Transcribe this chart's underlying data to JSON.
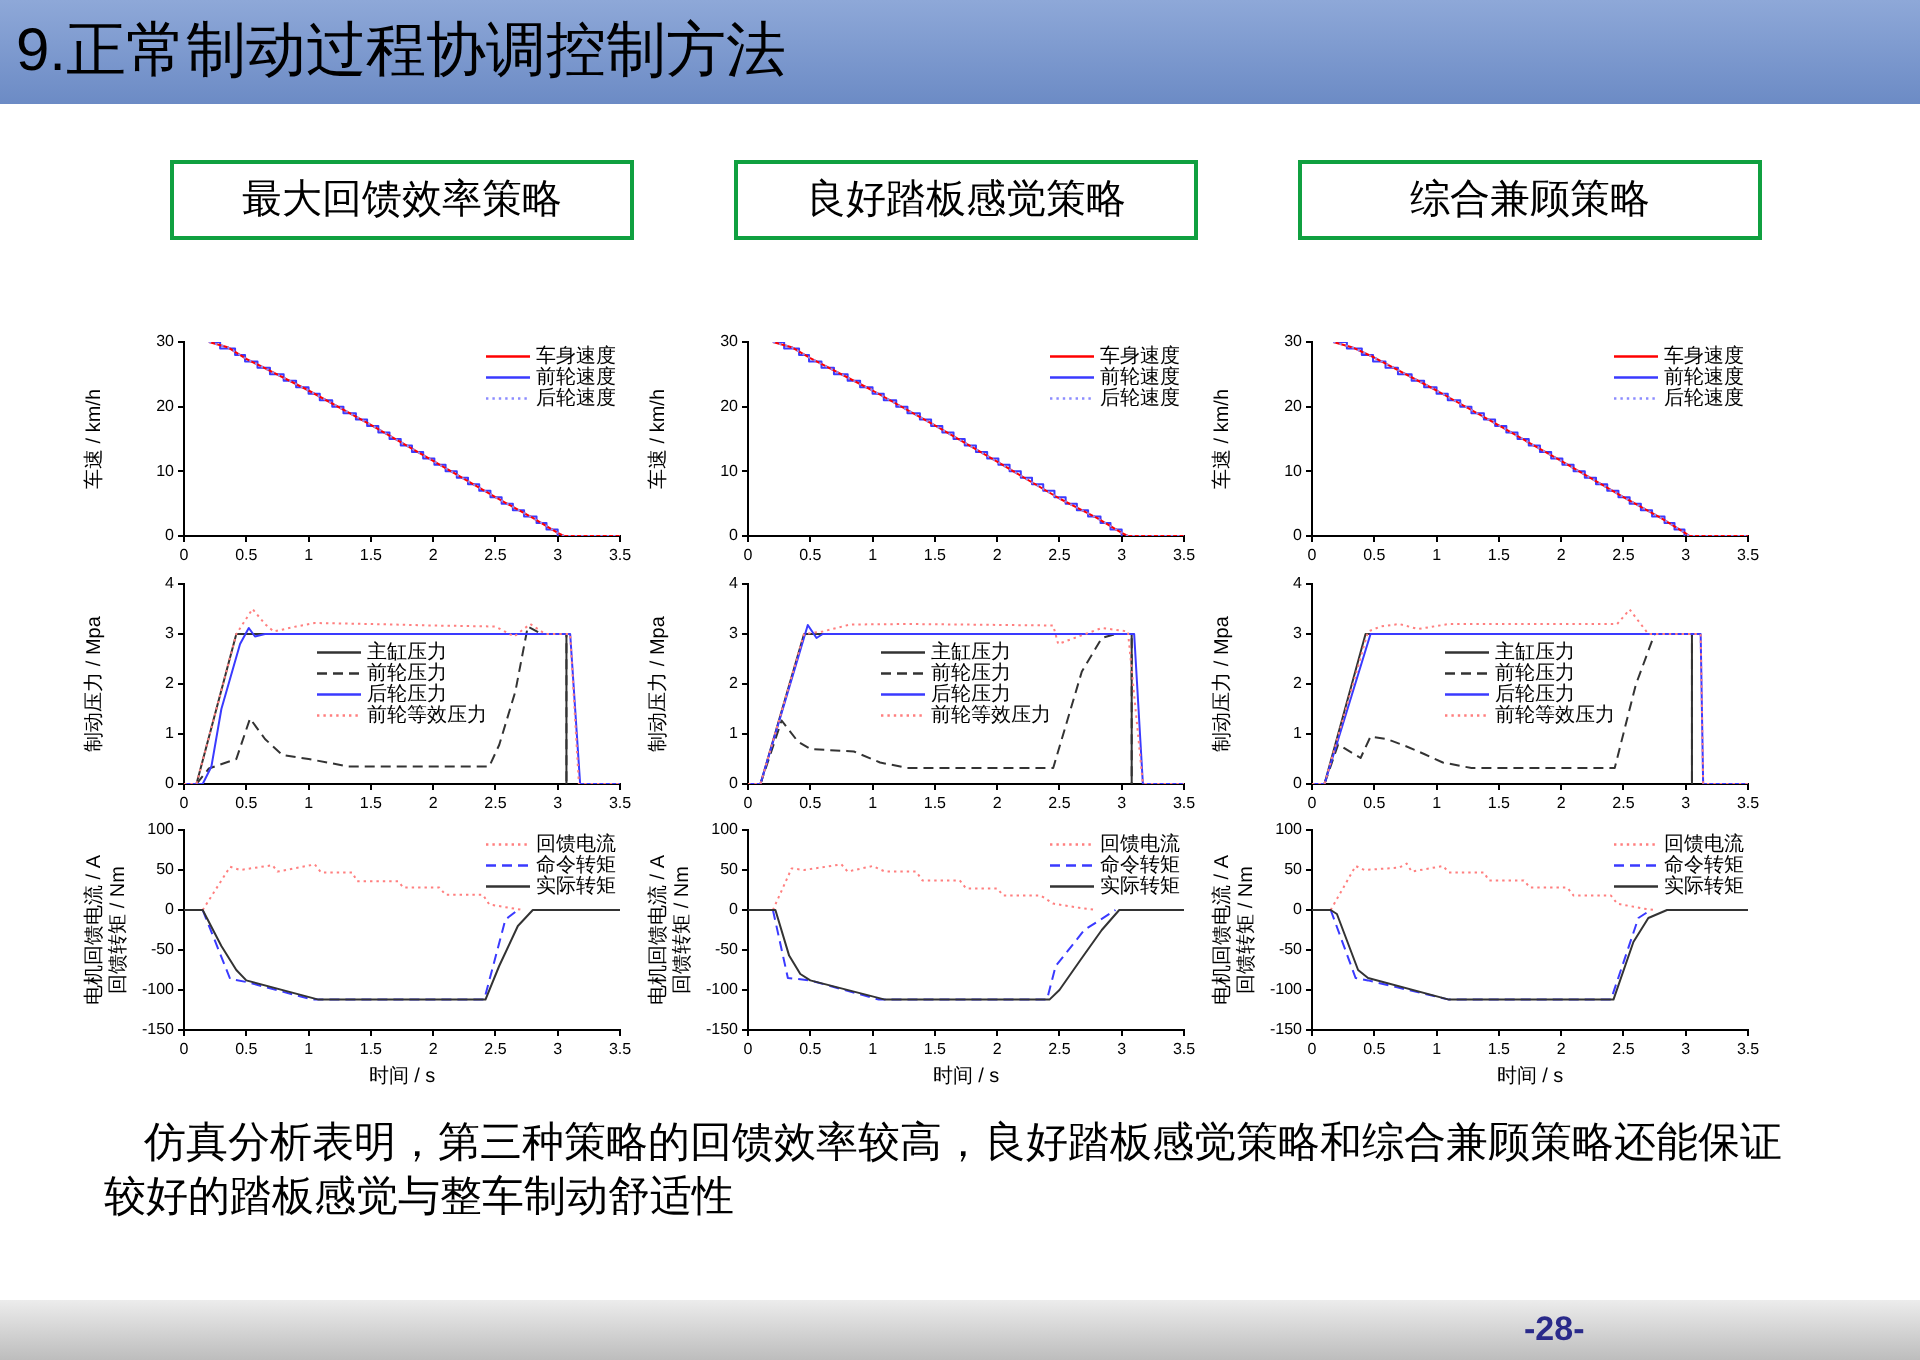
{
  "chart_data": [
    {
      "type": "other",
      "title": "9.正常制动过程协调控制方法"
    },
    {
      "type": "line",
      "title": "最大回馈效率策略",
      "ylabel": "车速 / km/h",
      "xlim": [
        0,
        3.5
      ],
      "xticks": [
        0,
        0.5,
        1,
        1.5,
        2,
        2.5,
        3,
        3.5
      ],
      "ylim": [
        0,
        30
      ],
      "yticks": [
        0,
        10,
        20,
        30
      ],
      "legend": "top right",
      "series": [
        {
          "name": "车身速度",
          "color": "#ff0000",
          "line_style": "solid",
          "x": [
            0.2,
            0.35,
            0.5,
            1,
            1.5,
            2,
            2.5,
            2.8,
            3,
            3.05,
            3.5
          ],
          "values": [
            30,
            29.2,
            27.4,
            22.5,
            17.2,
            11.6,
            6,
            2.8,
            0.5,
            0,
            0
          ]
        },
        {
          "name": "前轮速度",
          "type": "step",
          "color": "#3a3aff",
          "line_style": "solid",
          "x": [
            0.2,
            0.29,
            0.41,
            0.49,
            0.59,
            0.69,
            0.8,
            0.9,
            1,
            1.09,
            1.19,
            1.28,
            1.38,
            1.47,
            1.56,
            1.65,
            1.74,
            1.83,
            1.92,
            2.01,
            2.1,
            2.19,
            2.28,
            2.37,
            2.46,
            2.55,
            2.64,
            2.73,
            2.83,
            2.91,
            3
          ],
          "values": [
            30,
            29,
            28,
            27,
            26,
            25,
            24,
            23,
            22,
            21,
            20,
            19,
            18,
            17,
            16,
            15,
            14,
            13,
            12,
            11,
            10,
            9,
            8,
            7,
            6,
            5,
            4,
            3,
            2,
            1,
            0
          ]
        },
        {
          "name": "后轮速度",
          "color": "#8c8cff",
          "line_style": "dotted",
          "x": [
            0.2,
            0.35,
            0.5,
            1,
            1.5,
            2,
            2.5,
            2.8,
            3,
            3.05,
            3.5
          ],
          "values": [
            30,
            29.2,
            27.4,
            22.5,
            17.2,
            11.6,
            6,
            2.8,
            0.5,
            0,
            0
          ]
        }
      ]
    },
    {
      "type": "line",
      "title": "良好踏板感觉策略",
      "ylabel": "车速 / km/h",
      "xlim": [
        0,
        3.5
      ],
      "xticks": [
        0,
        0.5,
        1,
        1.5,
        2,
        2.5,
        3,
        3.5
      ],
      "ylim": [
        0,
        30
      ],
      "yticks": [
        0,
        10,
        20,
        30
      ],
      "legend": "top right",
      "series": [
        {
          "name": "车身速度",
          "color": "#ff0000",
          "line_style": "solid",
          "x": [
            0.2,
            0.35,
            0.5,
            1,
            1.5,
            2,
            2.5,
            2.8,
            3,
            3.05,
            3.5
          ],
          "values": [
            30,
            29.2,
            27.5,
            22.5,
            17.1,
            11.5,
            5.8,
            2.8,
            0.5,
            0,
            0
          ]
        },
        {
          "name": "前轮速度",
          "type": "step",
          "color": "#3a3aff",
          "line_style": "solid",
          "x": [
            0.2,
            0.29,
            0.41,
            0.49,
            0.59,
            0.69,
            0.8,
            0.9,
            1,
            1.09,
            1.19,
            1.28,
            1.38,
            1.47,
            1.56,
            1.65,
            1.74,
            1.83,
            1.92,
            2.01,
            2.1,
            2.19,
            2.28,
            2.37,
            2.46,
            2.55,
            2.64,
            2.73,
            2.83,
            2.91,
            3
          ],
          "values": [
            30,
            29,
            28,
            27,
            26,
            25,
            24,
            23,
            22,
            21,
            20,
            19,
            18,
            17,
            16,
            15,
            14,
            13,
            12,
            11,
            10,
            9,
            8,
            7,
            6,
            5,
            4,
            3,
            2,
            1,
            0
          ]
        },
        {
          "name": "后轮速度",
          "color": "#8c8cff",
          "line_style": "dotted",
          "x": [
            0.2,
            0.35,
            0.5,
            1,
            1.5,
            2,
            2.5,
            2.8,
            3,
            3.05,
            3.5
          ],
          "values": [
            30,
            29.2,
            27.5,
            22.5,
            17.1,
            11.5,
            5.8,
            2.8,
            0.5,
            0,
            0
          ]
        }
      ]
    },
    {
      "type": "line",
      "title": "综合兼顾策略",
      "ylabel": "车速 / km/h",
      "xlim": [
        0,
        3.5
      ],
      "xticks": [
        0,
        0.5,
        1,
        1.5,
        2,
        2.5,
        3,
        3.5
      ],
      "ylim": [
        0,
        30
      ],
      "yticks": [
        0,
        10,
        20,
        30
      ],
      "legend": "top right",
      "series": [
        {
          "name": "车身速度",
          "color": "#ff0000",
          "line_style": "solid",
          "x": [
            0.17,
            0.32,
            0.5,
            1,
            1.5,
            2,
            2.5,
            2.8,
            3,
            3.03,
            3.5
          ],
          "values": [
            30,
            29.2,
            27.6,
            22.5,
            17.1,
            11.6,
            6,
            2.8,
            0.4,
            0,
            0
          ]
        },
        {
          "name": "前轮速度",
          "type": "step",
          "color": "#3a3aff",
          "line_style": "solid",
          "x": [
            0.17,
            0.28,
            0.4,
            0.49,
            0.59,
            0.69,
            0.8,
            0.9,
            1,
            1.09,
            1.19,
            1.28,
            1.38,
            1.47,
            1.56,
            1.65,
            1.74,
            1.83,
            1.92,
            2.01,
            2.1,
            2.19,
            2.28,
            2.37,
            2.46,
            2.55,
            2.64,
            2.73,
            2.83,
            2.91,
            2.99
          ],
          "values": [
            30,
            29,
            28,
            27,
            26,
            25,
            24,
            23,
            22,
            21,
            20,
            19,
            18,
            17,
            16,
            15,
            14,
            13,
            12,
            11,
            10,
            9,
            8,
            7,
            6,
            5,
            4,
            3,
            2,
            1,
            0
          ]
        },
        {
          "name": "后轮速度",
          "color": "#8c8cff",
          "line_style": "dotted",
          "x": [
            0.17,
            0.32,
            0.5,
            1,
            1.5,
            2,
            2.5,
            2.8,
            3,
            3.03,
            3.5
          ],
          "values": [
            30,
            29.2,
            27.6,
            22.5,
            17.1,
            11.6,
            6,
            2.8,
            0.4,
            0,
            0
          ]
        }
      ]
    },
    {
      "type": "line",
      "ylabel": "制动压力 / Mpa",
      "xlim": [
        0,
        3.5
      ],
      "xticks": [
        0,
        0.5,
        1,
        1.5,
        2,
        2.5,
        3,
        3.5
      ],
      "ylim": [
        0,
        4
      ],
      "yticks": [
        0,
        1,
        2,
        3,
        4
      ],
      "legend": "center",
      "series": [
        {
          "name": "主缸压力",
          "color": "#333333",
          "line_style": "solid",
          "x": [
            0.1,
            0.42,
            3.07,
            3.07
          ],
          "values": [
            0,
            3,
            3,
            0
          ]
        },
        {
          "name": "前轮压力",
          "color": "#333333",
          "line_style": "dashed",
          "x": [
            0.1,
            0.2,
            0.42,
            0.53,
            0.65,
            0.79,
            1,
            1.32,
            2.45,
            2.53,
            2.66,
            2.76,
            2.87,
            3.07,
            3.07
          ],
          "values": [
            0,
            0.31,
            0.5,
            1.31,
            0.9,
            0.58,
            0.5,
            0.35,
            0.35,
            0.78,
            1.85,
            3.15,
            3,
            3,
            0
          ]
        },
        {
          "name": "后轮压力",
          "color": "#3a3aff",
          "line_style": "solid",
          "x": [
            0,
            0.15,
            0.22,
            0.3,
            0.45,
            0.52,
            0.57,
            0.65,
            3.1,
            3.18,
            3.5
          ],
          "values": [
            0,
            0,
            0.35,
            1.5,
            2.8,
            3.12,
            2.95,
            3,
            3,
            0,
            0
          ]
        },
        {
          "name": "前轮等效压力",
          "color": "#ff7f7f",
          "line_style": "dotted",
          "x": [
            0,
            0.1,
            0.42,
            0.55,
            0.65,
            0.72,
            0.9,
            1.05,
            1.5,
            2,
            2.5,
            2.65,
            2.78,
            2.9,
            3.1,
            3.17,
            3.5
          ],
          "values": [
            0,
            0,
            3,
            3.5,
            3.2,
            3.05,
            3.15,
            3.22,
            3.2,
            3.17,
            3.15,
            2.95,
            3.2,
            3,
            3,
            0,
            0
          ]
        }
      ]
    },
    {
      "type": "line",
      "ylabel": "制动压力 / Mpa",
      "xlim": [
        0,
        3.5
      ],
      "xticks": [
        0,
        0.5,
        1,
        1.5,
        2,
        2.5,
        3,
        3.5
      ],
      "ylim": [
        0,
        4
      ],
      "yticks": [
        0,
        1,
        2,
        3,
        4
      ],
      "legend": "center",
      "series": [
        {
          "name": "主缸压力",
          "color": "#333333",
          "line_style": "solid",
          "x": [
            0.1,
            0.45,
            3.08,
            3.08
          ],
          "values": [
            0,
            3,
            3,
            0
          ]
        },
        {
          "name": "前轮压力",
          "color": "#333333",
          "line_style": "dashed",
          "x": [
            0.1,
            0.27,
            0.4,
            0.5,
            0.85,
            1.06,
            1.28,
            2.45,
            2.68,
            2.84,
            2.95,
            3.08,
            3.08
          ],
          "values": [
            0,
            1.27,
            0.85,
            0.7,
            0.65,
            0.43,
            0.32,
            0.32,
            2.25,
            2.92,
            3,
            3,
            0
          ]
        },
        {
          "name": "后轮压力",
          "color": "#3a3aff",
          "line_style": "solid",
          "x": [
            0,
            0.1,
            0.48,
            0.55,
            0.6,
            3.1,
            3.17,
            3.5
          ],
          "values": [
            0,
            0,
            3.18,
            2.92,
            3,
            3,
            0,
            0
          ]
        },
        {
          "name": "前轮等效压力",
          "color": "#ff7f7f",
          "line_style": "dotted",
          "x": [
            0,
            0.1,
            0.45,
            0.6,
            0.82,
            1.3,
            2.45,
            2.49,
            2.84,
            3.05,
            3.17,
            3.5
          ],
          "values": [
            0,
            0,
            3,
            3.05,
            3.19,
            3.2,
            3.17,
            2.8,
            3.12,
            3.05,
            0,
            0
          ]
        }
      ]
    },
    {
      "type": "line",
      "ylabel": "制动压力 / Mpa",
      "xlim": [
        0,
        3.5
      ],
      "xticks": [
        0,
        0.5,
        1,
        1.5,
        2,
        2.5,
        3,
        3.5
      ],
      "ylim": [
        0,
        4
      ],
      "yticks": [
        0,
        1,
        2,
        3,
        4
      ],
      "legend": "center",
      "series": [
        {
          "name": "主缸压力",
          "color": "#333333",
          "line_style": "solid",
          "x": [
            0.1,
            0.43,
            3.05,
            3.05
          ],
          "values": [
            0,
            3,
            3,
            0
          ]
        },
        {
          "name": "前轮压力",
          "color": "#333333",
          "line_style": "dashed",
          "x": [
            0.1,
            0.21,
            0.39,
            0.47,
            0.6,
            0.75,
            0.9,
            1.05,
            1.28,
            2.43,
            2.6,
            2.75,
            3.05,
            3.05
          ],
          "values": [
            0,
            0.79,
            0.52,
            0.95,
            0.9,
            0.76,
            0.6,
            0.43,
            0.32,
            0.32,
            1.99,
            3,
            3,
            0
          ]
        },
        {
          "name": "后轮压力",
          "color": "#3a3aff",
          "line_style": "solid",
          "x": [
            0,
            0.1,
            0.47,
            3.12,
            3.14,
            3.5
          ],
          "values": [
            0,
            0,
            3,
            3,
            0,
            0
          ]
        },
        {
          "name": "前轮等效压力",
          "color": "#ff7f7f",
          "line_style": "dotted",
          "x": [
            0,
            0.1,
            0.45,
            0.55,
            0.7,
            0.85,
            1.1,
            2.45,
            2.55,
            2.7,
            3.12,
            3.14,
            3.5
          ],
          "values": [
            0,
            0,
            3.05,
            3.15,
            3.2,
            3.1,
            3.2,
            3.2,
            3.49,
            3,
            3,
            0,
            0
          ]
        }
      ]
    },
    {
      "type": "line",
      "ylabel": "电机回馈电流 / A\n回馈转矩 / Nm",
      "xlabel": "时间 / s",
      "xlim": [
        0,
        3.5
      ],
      "xticks": [
        0,
        0.5,
        1,
        1.5,
        2,
        2.5,
        3,
        3.5
      ],
      "ylim": [
        -150,
        100
      ],
      "yticks": [
        -150,
        -100,
        -50,
        0,
        50,
        100
      ],
      "legend": "top right",
      "series": [
        {
          "name": "回馈电流",
          "color": "#ff7f7f",
          "line_style": "dotted",
          "x": [
            0.15,
            0.37,
            0.45,
            0.71,
            0.75,
            1.05,
            1.1,
            1.35,
            1.39,
            1.72,
            1.76,
            2.05,
            2.1,
            2.4,
            2.45,
            2.6,
            2.72
          ],
          "values": [
            0,
            54,
            50,
            56,
            48,
            57,
            47,
            47,
            36,
            36,
            28,
            28,
            19,
            19,
            7,
            3,
            0
          ]
        },
        {
          "name": "命令转矩",
          "color": "#3a3aff",
          "line_style": "dashed",
          "x": [
            0.15,
            0.37,
            0.5,
            1.03,
            2.41,
            2.58,
            2.68
          ],
          "values": [
            0,
            -86,
            -90,
            -112,
            -112,
            -12,
            0
          ]
        },
        {
          "name": "实际转矩",
          "color": "#333333",
          "line_style": "solid",
          "x": [
            0,
            0.15,
            0.3,
            0.42,
            0.5,
            1.08,
            2.42,
            2.53,
            2.68,
            2.8,
            3.5
          ],
          "values": [
            0,
            0,
            -45,
            -75,
            -88,
            -112,
            -112,
            -70,
            -20,
            0,
            0
          ]
        }
      ]
    },
    {
      "type": "line",
      "ylabel": "电机回馈电流 / A\n回馈转矩 / Nm",
      "xlabel": "时间 / s",
      "xlim": [
        0,
        3.5
      ],
      "xticks": [
        0,
        0.5,
        1,
        1.5,
        2,
        2.5,
        3,
        3.5
      ],
      "ylim": [
        -150,
        100
      ],
      "yticks": [
        -150,
        -100,
        -50,
        0,
        50,
        100
      ],
      "legend": "top right",
      "series": [
        {
          "name": "回馈电流",
          "color": "#ff7f7f",
          "line_style": "dotted",
          "x": [
            0.2,
            0.35,
            0.45,
            0.75,
            0.8,
            1,
            1.1,
            1.35,
            1.4,
            1.7,
            1.75,
            2,
            2.05,
            2.35,
            2.45,
            2.65,
            2.8
          ],
          "values": [
            0,
            52,
            50,
            57,
            48,
            55,
            48,
            48,
            37,
            37,
            27,
            27,
            18,
            18,
            8,
            3,
            0
          ]
        },
        {
          "name": "命令转矩",
          "color": "#3a3aff",
          "line_style": "dashed",
          "x": [
            0.2,
            0.32,
            0.5,
            1.05,
            2.4,
            2.47,
            2.7,
            2.95
          ],
          "values": [
            0,
            -85,
            -88,
            -112,
            -112,
            -70,
            -25,
            0
          ]
        },
        {
          "name": "实际转矩",
          "color": "#333333",
          "line_style": "solid",
          "x": [
            0,
            0.22,
            0.33,
            0.42,
            0.5,
            1.1,
            2.42,
            2.5,
            2.68,
            2.84,
            2.98,
            3.5
          ],
          "values": [
            0,
            0,
            -57,
            -80,
            -88,
            -112,
            -112,
            -100,
            -60,
            -25,
            0,
            0
          ]
        }
      ]
    },
    {
      "type": "line",
      "ylabel": "电机回馈电流 / A\n回馈转矩 / Nm",
      "xlabel": "时间 / s",
      "xlim": [
        0,
        3.5
      ],
      "xticks": [
        0,
        0.5,
        1,
        1.5,
        2,
        2.5,
        3,
        3.5
      ],
      "ylim": [
        -150,
        100
      ],
      "yticks": [
        -150,
        -100,
        -50,
        0,
        50,
        100
      ],
      "legend": "top right",
      "series": [
        {
          "name": "回馈电流",
          "color": "#ff7f7f",
          "line_style": "dotted",
          "x": [
            0.15,
            0.35,
            0.42,
            0.7,
            0.76,
            0.8,
            1.05,
            1.1,
            1.38,
            1.42,
            1.7,
            1.75,
            2.05,
            2.1,
            2.4,
            2.45,
            2.65,
            2.75
          ],
          "values": [
            0,
            55,
            50,
            53,
            58,
            48,
            55,
            47,
            47,
            37,
            37,
            28,
            28,
            18,
            18,
            8,
            2,
            0
          ]
        },
        {
          "name": "命令转矩",
          "color": "#3a3aff",
          "line_style": "dashed",
          "x": [
            0.15,
            0.35,
            0.45,
            1.1,
            2.4,
            2.62,
            2.72
          ],
          "values": [
            0,
            -85,
            -88,
            -112,
            -112,
            -10,
            0
          ]
        },
        {
          "name": "实际转矩",
          "color": "#333333",
          "line_style": "solid",
          "x": [
            0,
            0.15,
            0.2,
            0.37,
            0.45,
            1.1,
            2.42,
            2.58,
            2.7,
            2.85,
            3.5
          ],
          "values": [
            0,
            0,
            -5,
            -75,
            -85,
            -112,
            -112,
            -40,
            -10,
            0,
            0
          ]
        }
      ]
    },
    {
      "type": "other",
      "annotations": [
        "仿真分析表明，第三种策略的回馈效率较高，良好踏板感觉策略和综合兼顾策略还能保证较好的踏板感觉与整车制动舒适性",
        "-28-"
      ]
    }
  ]
}
